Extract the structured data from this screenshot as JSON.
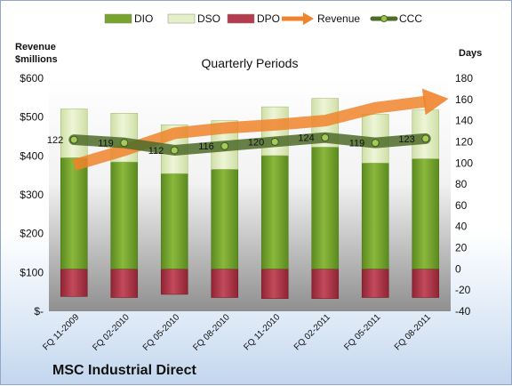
{
  "colors": {
    "dio": "#77a32e",
    "dso": "#e5efc8",
    "dpo": "#b33c4e",
    "revenue": "#f0842c",
    "ccc": "#4d6b29"
  },
  "chart_data": {
    "type": "bar",
    "title": "Quarterly Periods",
    "company": "MSC Industrial Direct",
    "left_axis_title": [
      "Revenue",
      "$millions"
    ],
    "right_axis_title": "Days",
    "categories": [
      "FQ 11-2009",
      "FQ 02-2010",
      "FQ 05-2010",
      "FQ 08-2010",
      "FQ 11-2010",
      "FQ 02-2011",
      "FQ 05-2011",
      "FQ 08-2011"
    ],
    "left_ticks": [
      "$-",
      "$100",
      "$200",
      "$300",
      "$400",
      "$500",
      "$600"
    ],
    "left_ylim": [
      0,
      600
    ],
    "right_ticks": [
      "-40",
      "-20",
      "0",
      "20",
      "40",
      "60",
      "80",
      "100",
      "120",
      "140",
      "160",
      "180"
    ],
    "right_ylim": [
      -40,
      180
    ],
    "grid": false,
    "legend_position": "top",
    "legend": [
      "DIO",
      "DSO",
      "DPO",
      "Revenue",
      "CCC"
    ],
    "series": [
      {
        "name": "DIO",
        "values": [
          105,
          101,
          90,
          94,
          107,
          115,
          100,
          104
        ]
      },
      {
        "name": "DSO",
        "values": [
          46,
          46,
          46,
          46,
          46,
          46,
          46,
          46
        ]
      },
      {
        "name": "DPO",
        "values": [
          -26,
          -27,
          -24,
          -27,
          -28,
          -28,
          -27,
          -27
        ]
      },
      {
        "name": "Revenue",
        "values": [
          98,
          112,
          128,
          133,
          136,
          140,
          152,
          158
        ]
      },
      {
        "name": "CCC",
        "values": [
          122,
          119,
          112,
          116,
          120,
          124,
          119,
          123
        ]
      }
    ],
    "data_labels": [
      "122",
      "119",
      "112",
      "116",
      "120",
      "124",
      "119",
      "123"
    ]
  }
}
